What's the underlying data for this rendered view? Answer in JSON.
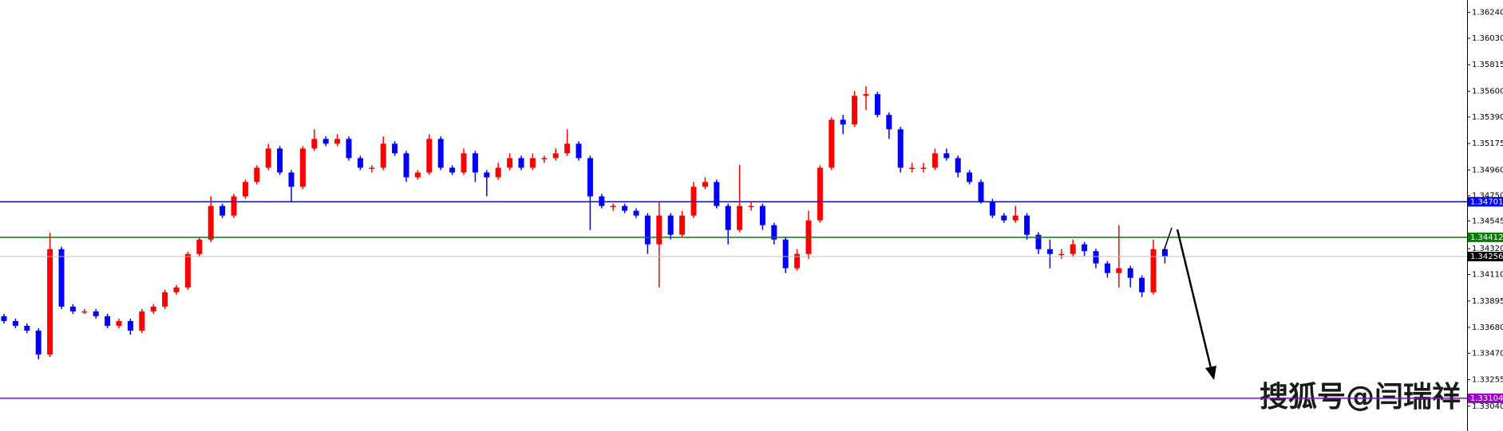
{
  "chart_data": {
    "type": "candlestick",
    "up_color": "#ff0000",
    "down_color": "#0000ff",
    "ylim": [
      1.32838,
      1.36341
    ],
    "yticks": [
      {
        "value": 1.3624,
        "label": "1.36240"
      },
      {
        "value": 1.3603,
        "label": "1.36030"
      },
      {
        "value": 1.35815,
        "label": "1.35815"
      },
      {
        "value": 1.356,
        "label": "1.35600"
      },
      {
        "value": 1.3539,
        "label": "1.35390"
      },
      {
        "value": 1.35175,
        "label": "1.35175"
      },
      {
        "value": 1.3496,
        "label": "1.34960"
      },
      {
        "value": 1.3475,
        "label": "1.34750"
      },
      {
        "value": 1.34545,
        "label": "1.34545"
      },
      {
        "value": 1.3432,
        "label": "1.34320"
      },
      {
        "value": 1.3411,
        "label": "1.34110"
      },
      {
        "value": 1.33895,
        "label": "1.33895"
      },
      {
        "value": 1.3368,
        "label": "1.33680"
      },
      {
        "value": 1.3347,
        "label": "1.33470"
      },
      {
        "value": 1.33255,
        "label": "1.33255"
      },
      {
        "value": 1.3304,
        "label": "1.33040"
      }
    ],
    "levels": [
      {
        "value": 1.34701,
        "label": "1.34701",
        "color": "#0000ff"
      },
      {
        "value": 1.34412,
        "label": "1.34412",
        "color": "#008000"
      },
      {
        "value": 1.34256,
        "label": "1.34256",
        "color": "#000000"
      },
      {
        "value": 1.33104,
        "label": "1.33104",
        "color": "#9900cc"
      }
    ],
    "watermark": "搜狐号@闫瑞祥",
    "open": [
      1.33771,
      1.33732,
      1.33693,
      1.33654,
      1.3346,
      1.34316,
      1.33849,
      1.3381,
      1.3381,
      1.33771,
      1.33693,
      1.33732,
      1.33654,
      1.3381,
      1.33849,
      1.33966,
      1.34005,
      1.34277,
      1.34394,
      1.34667,
      1.34589,
      1.34745,
      1.34862,
      1.34978,
      1.35134,
      1.34939,
      1.34823,
      1.35134,
      1.35212,
      1.35173,
      1.35212,
      1.35056,
      1.34978,
      1.34978,
      1.35173,
      1.35095,
      1.349,
      1.34939,
      1.35212,
      1.34978,
      1.34939,
      1.35095,
      1.34939,
      1.349,
      1.34978,
      1.35056,
      1.34978,
      1.35056,
      1.35056,
      1.35095,
      1.35173,
      1.35056,
      1.34745,
      1.34667,
      1.34667,
      1.34628,
      1.34589,
      1.34355,
      1.34589,
      1.34433,
      1.34589,
      1.34823,
      1.34862,
      1.34667,
      1.34472,
      1.34667,
      1.34667,
      1.34511,
      1.34394,
      1.34161,
      1.34277,
      1.3455,
      1.34978,
      1.35368,
      1.35329,
      1.35562,
      1.35576,
      1.35407,
      1.3529,
      1.34978,
      1.34978,
      1.34978,
      1.35095,
      1.35056,
      1.34939,
      1.34862,
      1.34706,
      1.34589,
      1.3455,
      1.34589,
      1.34433,
      1.34316,
      1.34277,
      1.34277,
      1.34355,
      1.343,
      1.342,
      1.34122,
      1.34161,
      1.34083,
      1.33966,
      1.34316
    ],
    "high": [
      1.33791,
      1.33752,
      1.33713,
      1.33674,
      1.34449,
      1.34336,
      1.33869,
      1.3383,
      1.3383,
      1.33791,
      1.33752,
      1.33752,
      1.3383,
      1.33869,
      1.33986,
      1.34025,
      1.34297,
      1.34414,
      1.34745,
      1.34687,
      1.34765,
      1.34882,
      1.34998,
      1.35173,
      1.35154,
      1.34959,
      1.35154,
      1.3529,
      1.35232,
      1.35251,
      1.35232,
      1.35076,
      1.34998,
      1.35232,
      1.35193,
      1.35115,
      1.34959,
      1.35251,
      1.35232,
      1.34998,
      1.35134,
      1.35115,
      1.34959,
      1.35017,
      1.35095,
      1.35076,
      1.35095,
      1.35076,
      1.35134,
      1.3529,
      1.35193,
      1.35076,
      1.34765,
      1.34687,
      1.34687,
      1.34648,
      1.34609,
      1.34706,
      1.34609,
      1.34628,
      1.34862,
      1.34901,
      1.34882,
      1.34687,
      1.35002,
      1.34706,
      1.34687,
      1.34531,
      1.34414,
      1.34316,
      1.34628,
      1.34998,
      1.35388,
      1.35407,
      1.35601,
      1.3564,
      1.35596,
      1.35427,
      1.3531,
      1.35017,
      1.35017,
      1.35134,
      1.35134,
      1.35076,
      1.34959,
      1.34882,
      1.34726,
      1.34609,
      1.34667,
      1.34609,
      1.34453,
      1.34394,
      1.34316,
      1.34394,
      1.34375,
      1.3432,
      1.3422,
      1.34511,
      1.34181,
      1.34103,
      1.34394,
      1.34336
    ],
    "low": [
      1.33712,
      1.33673,
      1.33634,
      1.33421,
      1.3344,
      1.33829,
      1.3379,
      1.3379,
      1.33751,
      1.33673,
      1.33673,
      1.3362,
      1.33634,
      1.3379,
      1.33829,
      1.33946,
      1.33985,
      1.34257,
      1.34374,
      1.34569,
      1.34569,
      1.34725,
      1.34842,
      1.34958,
      1.34919,
      1.34706,
      1.34803,
      1.35114,
      1.35153,
      1.35153,
      1.35036,
      1.34958,
      1.34939,
      1.34958,
      1.35075,
      1.34862,
      1.3488,
      1.34919,
      1.34958,
      1.34919,
      1.34919,
      1.34862,
      1.34745,
      1.3488,
      1.34958,
      1.34958,
      1.34958,
      1.35017,
      1.35036,
      1.35075,
      1.35036,
      1.34472,
      1.34647,
      1.34628,
      1.34608,
      1.34569,
      1.34277,
      1.34005,
      1.34394,
      1.34413,
      1.34569,
      1.34803,
      1.34647,
      1.34355,
      1.34452,
      1.34628,
      1.34472,
      1.34355,
      1.34122,
      1.34141,
      1.34238,
      1.3453,
      1.34958,
      1.35251,
      1.35309,
      1.35446,
      1.35387,
      1.35212,
      1.34939,
      1.34939,
      1.34939,
      1.34958,
      1.35036,
      1.349,
      1.34842,
      1.34686,
      1.34569,
      1.3453,
      1.3453,
      1.34394,
      1.34277,
      1.34161,
      1.34238,
      1.34257,
      1.34261,
      1.34161,
      1.34083,
      1.34005,
      1.34005,
      1.33927,
      1.33946,
      1.342
    ],
    "close": [
      1.33732,
      1.33693,
      1.33654,
      1.3346,
      1.34316,
      1.33849,
      1.3381,
      1.3381,
      1.33771,
      1.33693,
      1.33732,
      1.33654,
      1.3381,
      1.33849,
      1.33966,
      1.34005,
      1.34277,
      1.34394,
      1.34667,
      1.34589,
      1.34745,
      1.34862,
      1.34978,
      1.35134,
      1.34939,
      1.34823,
      1.35134,
      1.35212,
      1.35173,
      1.35212,
      1.35056,
      1.34978,
      1.34978,
      1.35173,
      1.35095,
      1.349,
      1.34939,
      1.35212,
      1.34978,
      1.34939,
      1.35095,
      1.34939,
      1.349,
      1.34978,
      1.35056,
      1.34978,
      1.35056,
      1.35056,
      1.35095,
      1.35173,
      1.35056,
      1.34745,
      1.34667,
      1.34667,
      1.34628,
      1.34589,
      1.34355,
      1.34589,
      1.34433,
      1.34589,
      1.34823,
      1.34862,
      1.34667,
      1.34472,
      1.34667,
      1.34667,
      1.34511,
      1.34394,
      1.34161,
      1.34277,
      1.3455,
      1.34978,
      1.35368,
      1.35329,
      1.35562,
      1.35576,
      1.35407,
      1.3529,
      1.34978,
      1.34978,
      1.34978,
      1.35095,
      1.35056,
      1.34939,
      1.34862,
      1.34706,
      1.34589,
      1.3455,
      1.34589,
      1.34433,
      1.34316,
      1.34277,
      1.34277,
      1.34355,
      1.343,
      1.342,
      1.34122,
      1.34161,
      1.34083,
      1.33966,
      1.34316,
      1.34254
    ]
  }
}
